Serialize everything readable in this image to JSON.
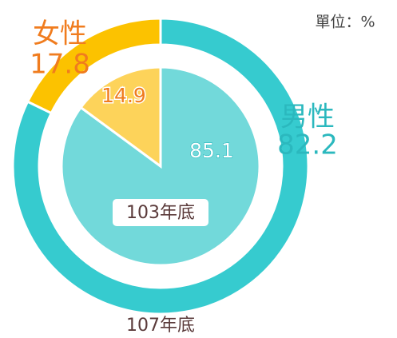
{
  "chart_data": [
    {
      "type": "donut",
      "title": "107年底",
      "unit_label": "單位：%",
      "categories": [
        "男性",
        "女性"
      ],
      "values": [
        82.2,
        17.8
      ],
      "colors": [
        "#36cbcf",
        "#fcc200"
      ],
      "label_colors": [
        "#2bb8be",
        "#f07c1e"
      ]
    },
    {
      "type": "pie",
      "title": "103年底",
      "values": [
        85.1,
        14.9
      ],
      "colors": [
        "#72d9da",
        "#fdd35a"
      ],
      "label_colors": [
        "#2bb8be",
        "#f07c1e"
      ]
    }
  ]
}
